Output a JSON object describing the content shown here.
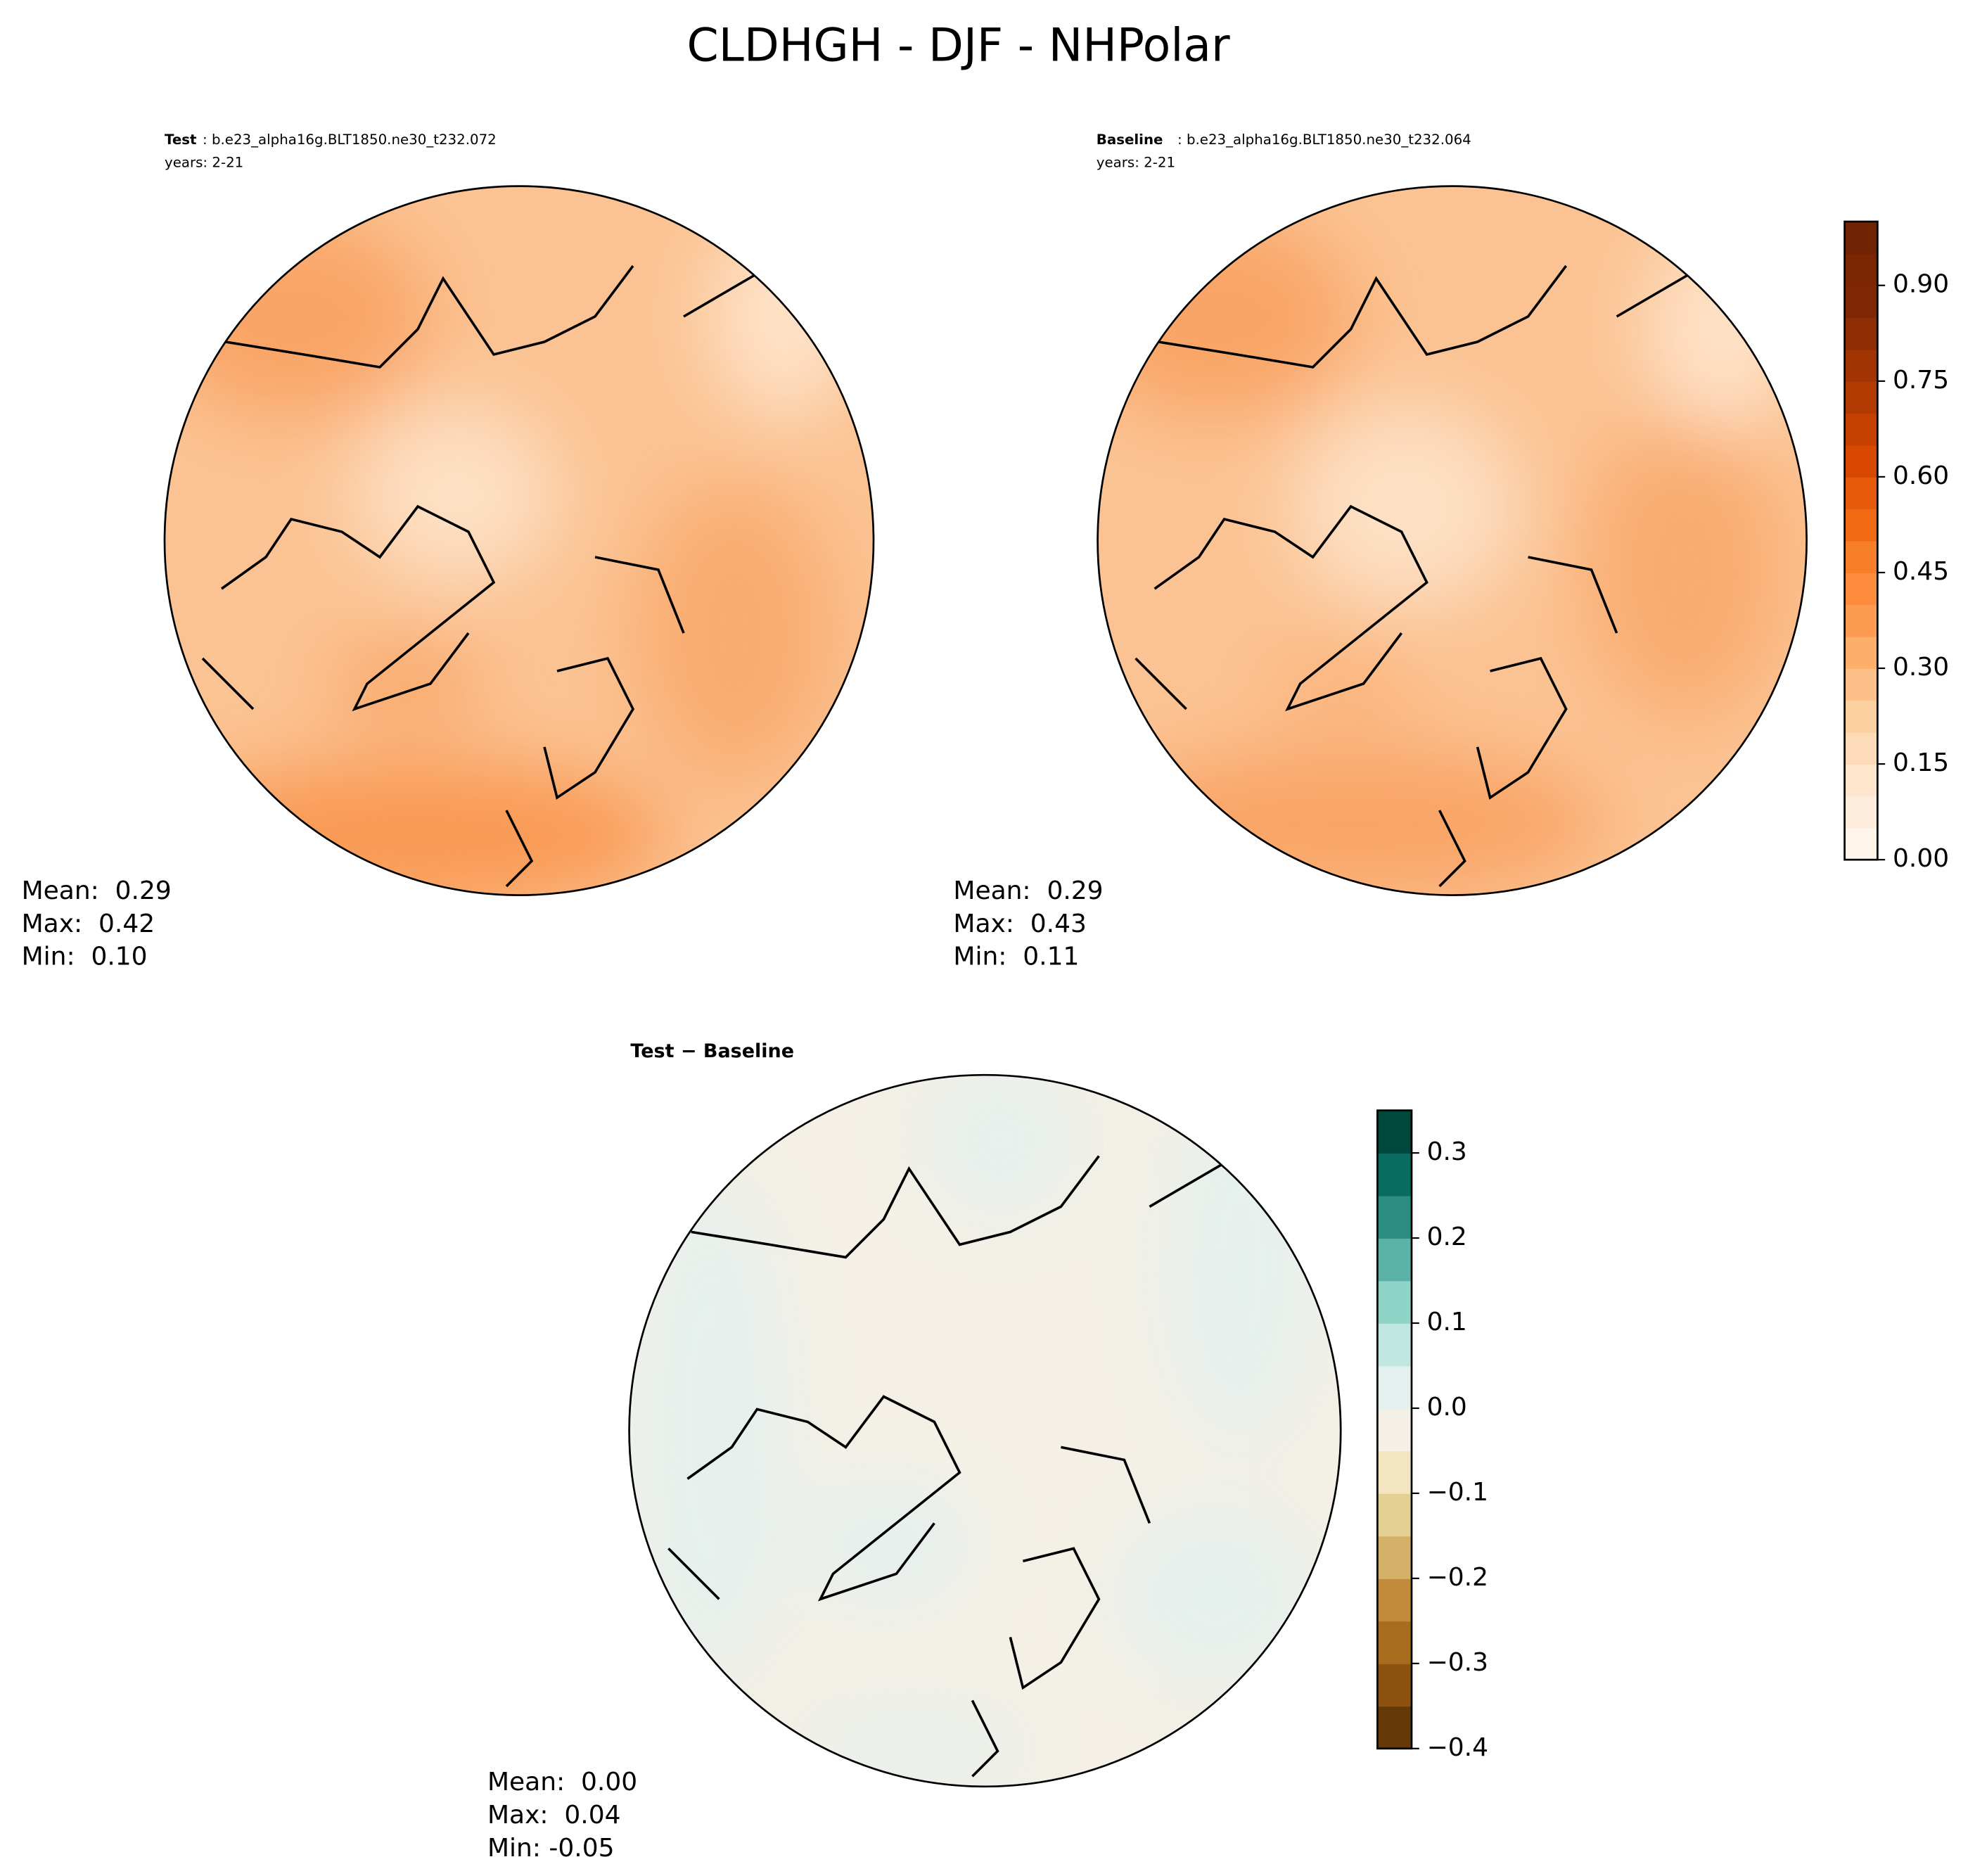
{
  "title": "CLDHGH - DJF - NHPolar",
  "panels": [
    {
      "label": "Test",
      "case": ": b.e23_alpha16g.BLT1850.ne30_t232.072",
      "years": "years: 2-21",
      "stats": [
        "Mean:  0.29",
        "Max:  0.42",
        "Min:  0.10"
      ]
    },
    {
      "label": "Baseline",
      "case": ": b.e23_alpha16g.BLT1850.ne30_t232.064",
      "years": "years: 2-21",
      "stats": [
        "Mean:  0.29",
        "Max:  0.43",
        "Min:  0.11"
      ]
    },
    {
      "label": "Test − Baseline",
      "stats": [
        "Mean:  0.00",
        "Max:  0.04",
        "Min: -0.05"
      ]
    }
  ],
  "colorbars": [
    {
      "lim": [
        0,
        1.0
      ],
      "ticks": [
        {
          "value": 0,
          "label": "0.00"
        },
        0.15,
        {
          "value": 0.3,
          "label": "0.30"
        },
        0.45,
        {
          "value": 0.6,
          "label": "0.60"
        },
        0.75,
        {
          "value": 0.9,
          "label": "0.90"
        }
      ],
      "colors": [
        "#fff5eb",
        "#feeddc",
        "#fee5cc",
        "#fddbb8",
        "#fdd0a2",
        "#fdc088",
        "#fdae6b",
        "#fd9b51",
        "#fd8d3c",
        "#f77f2a",
        "#f16913",
        "#e55a0b",
        "#d94801",
        "#c44102",
        "#b13a03",
        "#a23403",
        "#8f2d04",
        "#7f2704",
        "#7a2603",
        "#6f2303"
      ]
    },
    {
      "lim": [
        -0.4,
        0.35
      ],
      "ticks": [
        {
          "value": -0.4,
          "label": "−0.4"
        },
        {
          "value": -0.3,
          "label": "−0.3"
        },
        {
          "value": -0.2,
          "label": "−0.2"
        },
        {
          "value": -0.1,
          "label": "−0.1"
        },
        {
          "value": 0,
          "label": "0.0"
        },
        0.1,
        0.2,
        0.3
      ],
      "colors": [
        "#663a08",
        "#8b5210",
        "#a86c1e",
        "#c18b3b",
        "#d5b068",
        "#e4cf93",
        "#f2e5c0",
        "#f4f0e6",
        "#e4f0ee",
        "#c0e6df",
        "#8fd4c7",
        "#5bb2a6",
        "#2d8c82",
        "#086c61",
        "#00473c"
      ]
    }
  ]
}
